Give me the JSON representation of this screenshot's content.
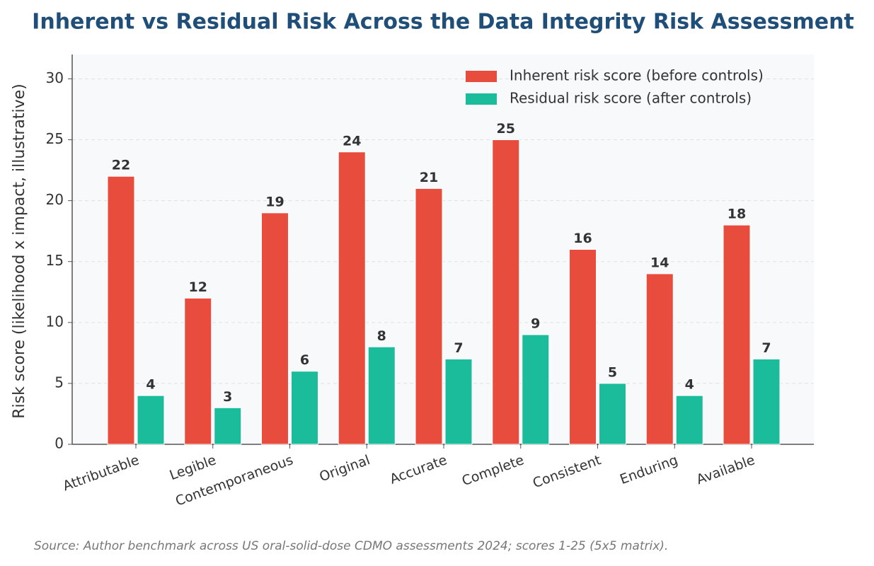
{
  "chart_data": {
    "type": "bar",
    "title": "Inherent vs Residual Risk Across the Data Integrity Risk Assessment",
    "y_label": "Risk score (likelihood x impact, illustrative)",
    "source": "Source: Author benchmark across US oral-solid-dose CDMO assessments 2024; scores 1-25 (5x5 matrix).",
    "categories": [
      "Attributable",
      "Legible",
      "Contemporaneous",
      "Original",
      "Accurate",
      "Complete",
      "Consistent",
      "Enduring",
      "Available"
    ],
    "series": [
      {
        "name": "Inherent risk score (before controls)",
        "color": "#e74c3c",
        "values": [
          22,
          12,
          19,
          24,
          21,
          25,
          16,
          14,
          18
        ]
      },
      {
        "name": "Residual risk score (after controls)",
        "color": "#1abc9c",
        "values": [
          4,
          3,
          6,
          8,
          7,
          9,
          5,
          4,
          7
        ]
      }
    ],
    "ylim": [
      0,
      32
    ],
    "yticks": [
      0,
      5,
      10,
      15,
      20,
      25,
      30
    ],
    "grid": true,
    "legend": "upper right"
  }
}
